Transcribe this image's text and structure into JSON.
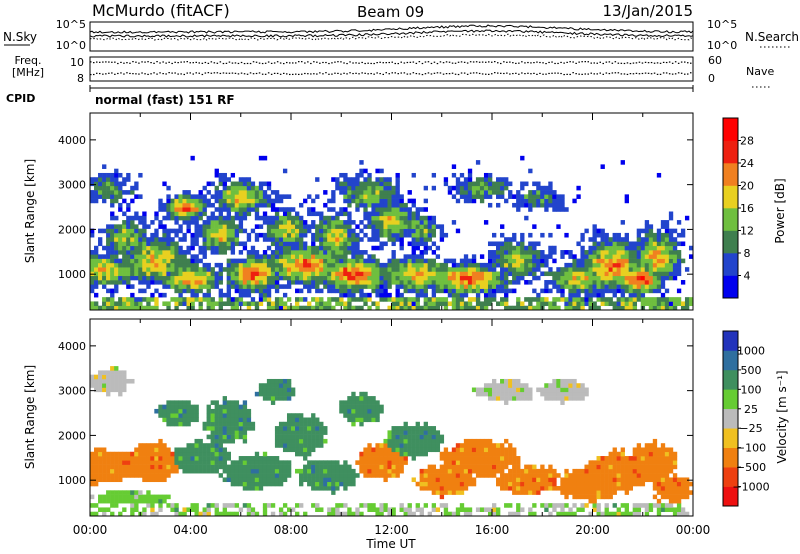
{
  "header": {
    "station": "McMurdo (fitACF)",
    "beam": "Beam 09",
    "date": "13/Jan/2015"
  },
  "noise_panel": {
    "left_label": "N.Sky",
    "right_label": "N.Search",
    "ticks_left": [
      "10^5",
      "10^0"
    ],
    "ticks_right": [
      "10^5",
      "10^0"
    ]
  },
  "freq_panel": {
    "left_label_1": "Freq.",
    "left_label_2": "[MHz]",
    "ticks_left": [
      "10",
      "8"
    ],
    "right_label": "Nave",
    "ticks_right": [
      "60",
      "0"
    ]
  },
  "cpid": {
    "label": "CPID",
    "value": "normal (fast) 151 RF"
  },
  "chart_data": [
    {
      "type": "heatmap",
      "name": "power",
      "ylabel": "Slant Range [km]",
      "ylim": [
        200,
        4600
      ],
      "yticks": [
        "1000",
        "2000",
        "3000",
        "4000"
      ],
      "xlim": [
        "00:00",
        "24:00"
      ],
      "colorbar": {
        "label": "Power [dB]",
        "ticks": [
          "4",
          "8",
          "12",
          "16",
          "20",
          "24",
          "28"
        ],
        "colors": [
          "#0000ee",
          "#2244cc",
          "#3f7f4f",
          "#6fbf3f",
          "#e8d020",
          "#f08020",
          "#ee2010",
          "#ff0000"
        ]
      },
      "blobs": [
        {
          "t": 0.4,
          "r": 1100,
          "dt": 1.6,
          "dr": 350,
          "level": 0.55
        },
        {
          "t": 0.8,
          "r": 2900,
          "dt": 0.9,
          "dr": 300,
          "level": 0.35
        },
        {
          "t": 1.4,
          "r": 1800,
          "dt": 0.8,
          "dr": 400,
          "level": 0.5
        },
        {
          "t": 2.6,
          "r": 1300,
          "dt": 1.2,
          "dr": 500,
          "level": 0.6
        },
        {
          "t": 3.8,
          "r": 2500,
          "dt": 0.7,
          "dr": 250,
          "level": 0.8
        },
        {
          "t": 4.0,
          "r": 900,
          "dt": 1.2,
          "dr": 300,
          "level": 0.65
        },
        {
          "t": 5.2,
          "r": 1900,
          "dt": 0.8,
          "dr": 400,
          "level": 0.55
        },
        {
          "t": 6.0,
          "r": 2700,
          "dt": 1.0,
          "dr": 350,
          "level": 0.6
        },
        {
          "t": 6.5,
          "r": 1000,
          "dt": 1.0,
          "dr": 400,
          "level": 0.7
        },
        {
          "t": 7.8,
          "r": 2000,
          "dt": 0.8,
          "dr": 350,
          "level": 0.55
        },
        {
          "t": 8.6,
          "r": 1200,
          "dt": 1.4,
          "dr": 400,
          "level": 0.7
        },
        {
          "t": 9.8,
          "r": 1800,
          "dt": 0.8,
          "dr": 500,
          "level": 0.55
        },
        {
          "t": 10.5,
          "r": 1000,
          "dt": 1.2,
          "dr": 350,
          "level": 0.75
        },
        {
          "t": 11.0,
          "r": 2800,
          "dt": 1.2,
          "dr": 350,
          "level": 0.45
        },
        {
          "t": 12.0,
          "r": 2200,
          "dt": 0.9,
          "dr": 400,
          "level": 0.55
        },
        {
          "t": 13.0,
          "r": 1000,
          "dt": 1.4,
          "dr": 350,
          "level": 0.6
        },
        {
          "t": 13.2,
          "r": 2000,
          "dt": 0.7,
          "dr": 300,
          "level": 0.45
        },
        {
          "t": 15.0,
          "r": 900,
          "dt": 1.5,
          "dr": 300,
          "level": 0.75
        },
        {
          "t": 15.6,
          "r": 2900,
          "dt": 1.2,
          "dr": 250,
          "level": 0.4
        },
        {
          "t": 17.0,
          "r": 1300,
          "dt": 1.0,
          "dr": 400,
          "level": 0.5
        },
        {
          "t": 17.8,
          "r": 2700,
          "dt": 0.9,
          "dr": 250,
          "level": 0.35
        },
        {
          "t": 19.5,
          "r": 900,
          "dt": 1.2,
          "dr": 300,
          "level": 0.55
        },
        {
          "t": 20.8,
          "r": 1200,
          "dt": 1.2,
          "dr": 500,
          "level": 0.7
        },
        {
          "t": 21.8,
          "r": 900,
          "dt": 0.9,
          "dr": 300,
          "level": 0.85
        },
        {
          "t": 22.6,
          "r": 1400,
          "dt": 0.8,
          "dr": 500,
          "level": 0.65
        }
      ]
    },
    {
      "type": "heatmap",
      "name": "velocity",
      "ylabel": "Slant Range [km]",
      "ylim": [
        200,
        4600
      ],
      "yticks": [
        "1000",
        "2000",
        "3000",
        "4000"
      ],
      "xlim": [
        "00:00",
        "24:00"
      ],
      "xlabel": "Time UT",
      "xticks": [
        "00:00",
        "04:00",
        "08:00",
        "12:00",
        "16:00",
        "20:00",
        "00:00"
      ],
      "colorbar": {
        "label": "Velocity [m s⁻¹]",
        "ticks": [
          "1000",
          "500",
          "100",
          "25",
          "−25",
          "−100",
          "−500",
          "−1000"
        ],
        "colors": [
          "#2233bb",
          "#2f6f9f",
          "#3f8f5f",
          "#66cc33",
          "#bbbbbb",
          "#f0c020",
          "#f08010",
          "#ee4010",
          "#ee1010"
        ]
      },
      "blobs": [
        {
          "t": 0.6,
          "r": 1300,
          "dt": 1.3,
          "dr": 400,
          "cls": 6
        },
        {
          "t": 0.8,
          "r": 3200,
          "dt": 0.8,
          "dr": 300,
          "cls": 4
        },
        {
          "t": 1.6,
          "r": 600,
          "dt": 1.6,
          "dr": 150,
          "cls": 3
        },
        {
          "t": 2.5,
          "r": 1400,
          "dt": 1.1,
          "dr": 450,
          "cls": 6
        },
        {
          "t": 3.5,
          "r": 2500,
          "dt": 0.8,
          "dr": 300,
          "cls": 2
        },
        {
          "t": 4.4,
          "r": 1500,
          "dt": 1.2,
          "dr": 350,
          "cls": 2
        },
        {
          "t": 5.5,
          "r": 2300,
          "dt": 1.0,
          "dr": 500,
          "cls": 2
        },
        {
          "t": 6.6,
          "r": 1200,
          "dt": 1.4,
          "dr": 400,
          "cls": 2
        },
        {
          "t": 7.4,
          "r": 3000,
          "dt": 0.8,
          "dr": 250,
          "cls": 2
        },
        {
          "t": 8.4,
          "r": 2000,
          "dt": 1.0,
          "dr": 500,
          "cls": 2
        },
        {
          "t": 9.5,
          "r": 1100,
          "dt": 1.2,
          "dr": 350,
          "cls": 2
        },
        {
          "t": 10.8,
          "r": 2600,
          "dt": 0.9,
          "dr": 350,
          "cls": 2
        },
        {
          "t": 11.6,
          "r": 1400,
          "dt": 1.0,
          "dr": 400,
          "cls": 6
        },
        {
          "t": 12.8,
          "r": 1900,
          "dt": 1.1,
          "dr": 400,
          "cls": 2
        },
        {
          "t": 14.2,
          "r": 1000,
          "dt": 1.2,
          "dr": 350,
          "cls": 6
        },
        {
          "t": 15.5,
          "r": 1500,
          "dt": 1.5,
          "dr": 450,
          "cls": 6
        },
        {
          "t": 16.5,
          "r": 3000,
          "dt": 1.2,
          "dr": 250,
          "cls": 4
        },
        {
          "t": 17.5,
          "r": 1000,
          "dt": 1.3,
          "dr": 350,
          "cls": 6
        },
        {
          "t": 18.8,
          "r": 3000,
          "dt": 1.0,
          "dr": 250,
          "cls": 4
        },
        {
          "t": 19.8,
          "r": 900,
          "dt": 1.3,
          "dr": 350,
          "cls": 6
        },
        {
          "t": 21.0,
          "r": 1200,
          "dt": 1.4,
          "dr": 450,
          "cls": 6
        },
        {
          "t": 22.4,
          "r": 1400,
          "dt": 1.0,
          "dr": 450,
          "cls": 6
        },
        {
          "t": 23.2,
          "r": 800,
          "dt": 0.8,
          "dr": 300,
          "cls": 6
        }
      ]
    }
  ]
}
